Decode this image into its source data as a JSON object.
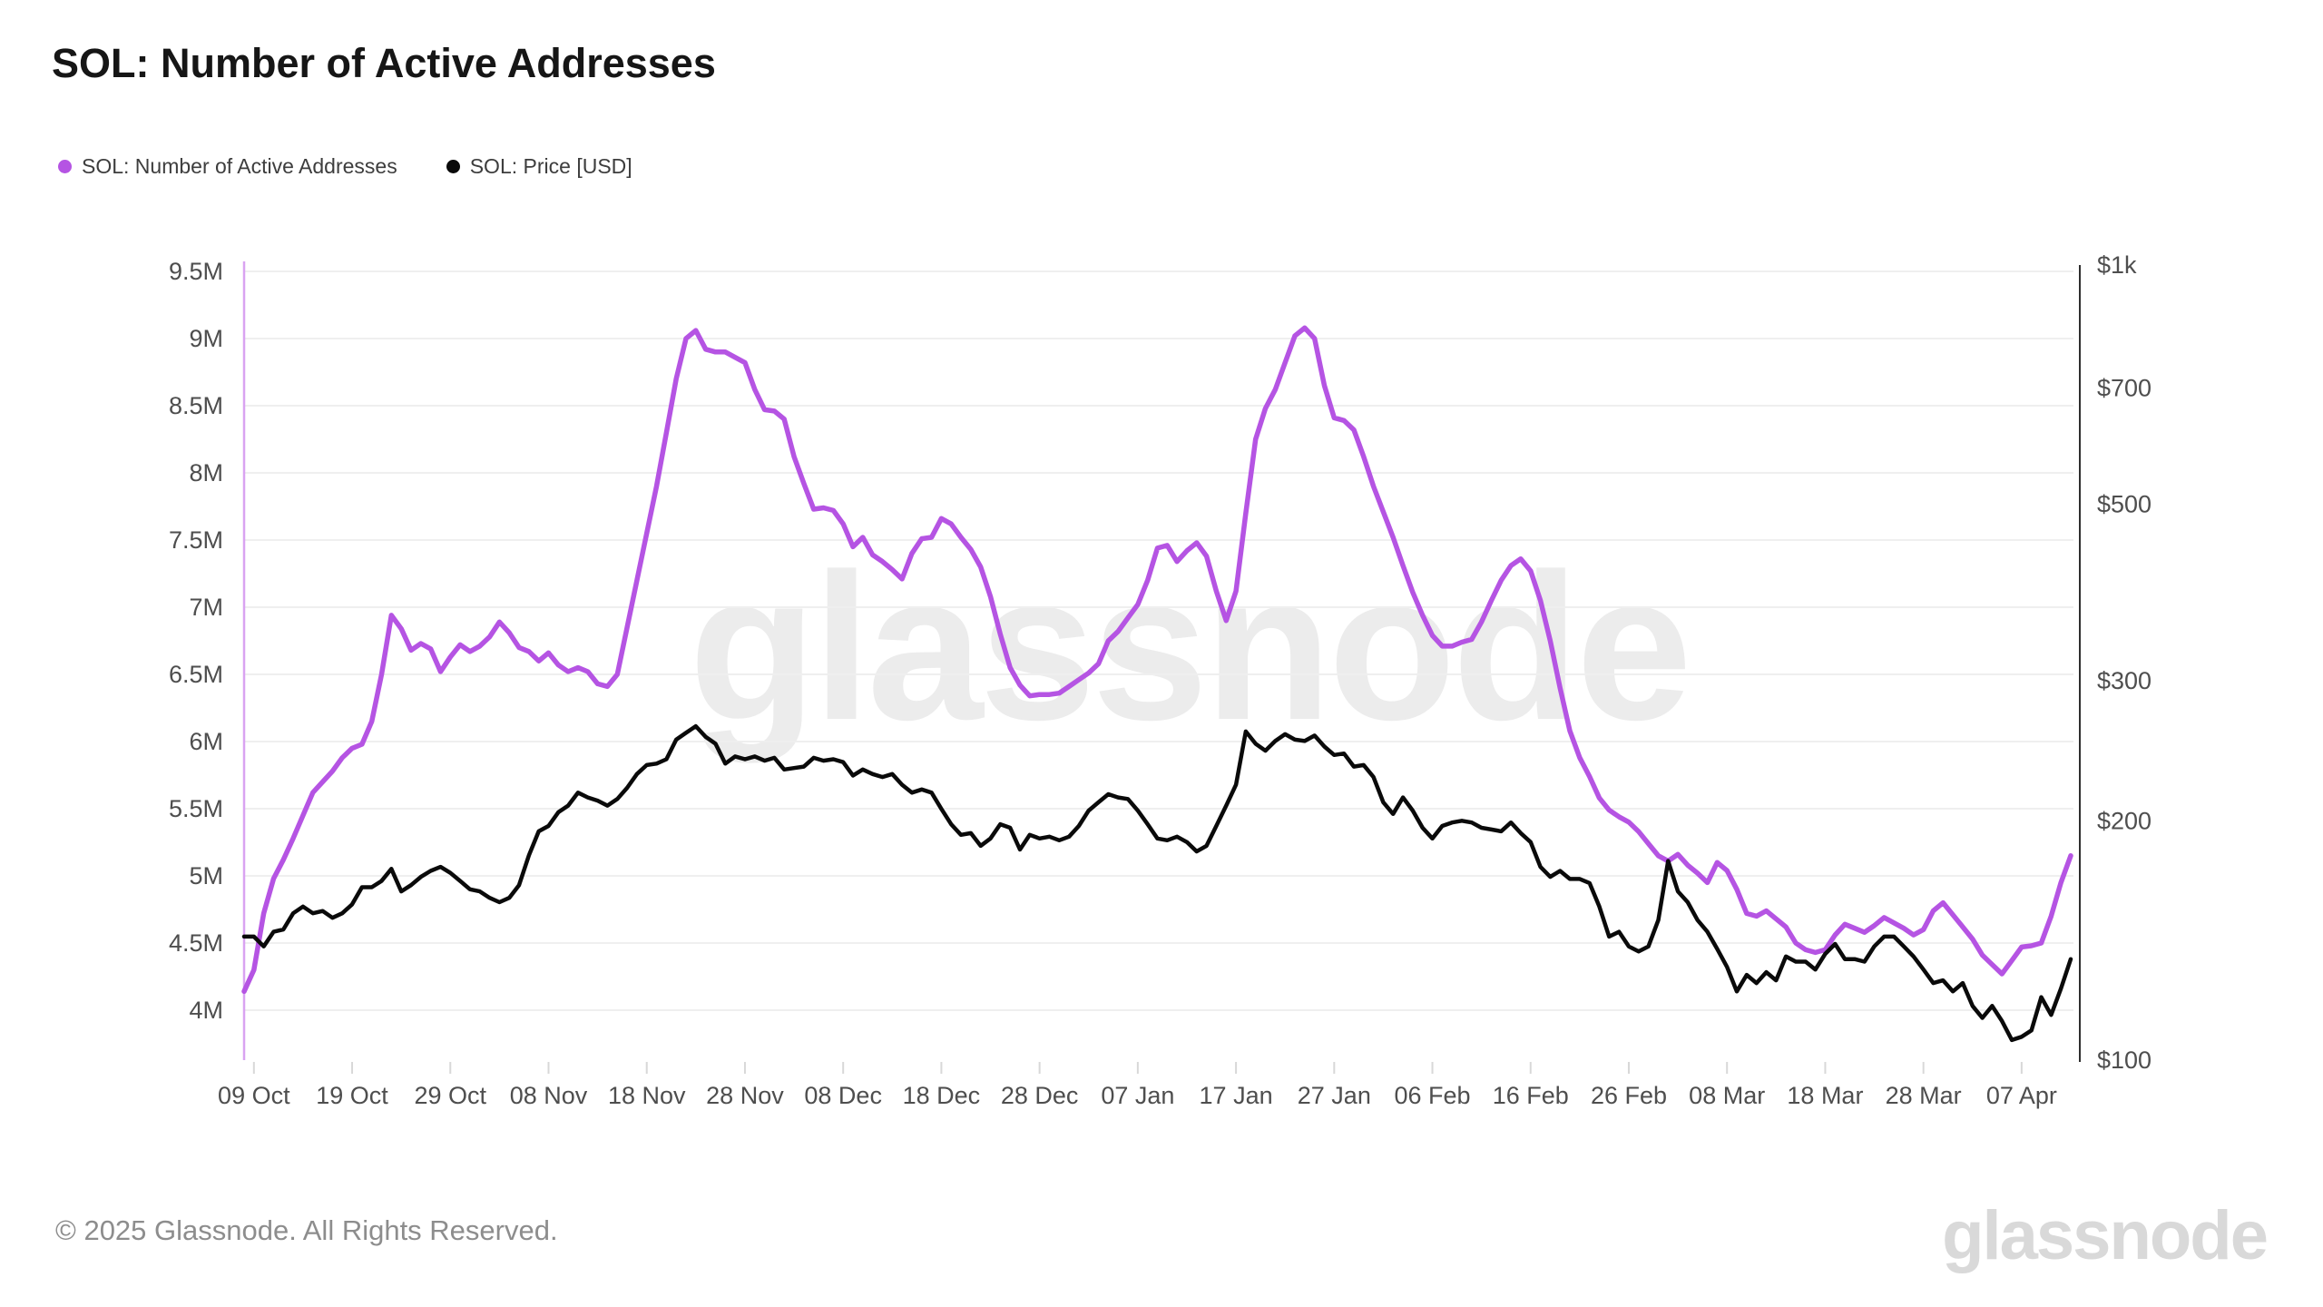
{
  "title": "SOL: Number of Active Addresses",
  "legend": [
    {
      "label": "SOL: Number of Active Addresses",
      "color": "#b554e3"
    },
    {
      "label": "SOL: Price [USD]",
      "color": "#0a0a0a"
    }
  ],
  "watermark": {
    "text": "glassnode",
    "color": "#ececec"
  },
  "footer": {
    "copyright": "© 2025 Glassnode. All Rights Reserved.",
    "brand": "glassnode"
  },
  "colors": {
    "left_axis_line": "#d9a3f1",
    "right_axis_line": "#2e2e2e",
    "gridline": "#efefef",
    "tick_mark": "#d8d8d8",
    "tick_text": "#4e4e4e"
  },
  "chart_data": {
    "type": "line",
    "interval": "daily",
    "start_date": "2024-10-08",
    "end_date": "2025-04-12",
    "grid": "horizontal-only",
    "legend_position": "top-left",
    "x_ticks": [
      {
        "day": 1,
        "label": "09 Oct"
      },
      {
        "day": 11,
        "label": "19 Oct"
      },
      {
        "day": 21,
        "label": "29 Oct"
      },
      {
        "day": 31,
        "label": "08 Nov"
      },
      {
        "day": 41,
        "label": "18 Nov"
      },
      {
        "day": 51,
        "label": "28 Nov"
      },
      {
        "day": 61,
        "label": "08 Dec"
      },
      {
        "day": 71,
        "label": "18 Dec"
      },
      {
        "day": 81,
        "label": "28 Dec"
      },
      {
        "day": 91,
        "label": "07 Jan"
      },
      {
        "day": 101,
        "label": "17 Jan"
      },
      {
        "day": 111,
        "label": "27 Jan"
      },
      {
        "day": 121,
        "label": "06 Feb"
      },
      {
        "day": 131,
        "label": "16 Feb"
      },
      {
        "day": 141,
        "label": "26 Feb"
      },
      {
        "day": 151,
        "label": "08 Mar"
      },
      {
        "day": 161,
        "label": "18 Mar"
      },
      {
        "day": 171,
        "label": "28 Mar"
      },
      {
        "day": 181,
        "label": "07 Apr"
      }
    ],
    "left_axis": {
      "unit": "M addresses",
      "min": 4,
      "max": 9.5,
      "scale": "linear",
      "ticks": [
        {
          "v": 9.5,
          "label": "9.5M"
        },
        {
          "v": 9,
          "label": "9M"
        },
        {
          "v": 8.5,
          "label": "8.5M"
        },
        {
          "v": 8,
          "label": "8M"
        },
        {
          "v": 7.5,
          "label": "7.5M"
        },
        {
          "v": 7,
          "label": "7M"
        },
        {
          "v": 6.5,
          "label": "6.5M"
        },
        {
          "v": 6,
          "label": "6M"
        },
        {
          "v": 5.5,
          "label": "5.5M"
        },
        {
          "v": 5,
          "label": "5M"
        },
        {
          "v": 4.5,
          "label": "4.5M"
        },
        {
          "v": 4,
          "label": "4M"
        }
      ]
    },
    "right_axis": {
      "unit": "USD",
      "min": 100,
      "max": 1000,
      "scale": "log",
      "ticks": [
        {
          "v": 1000,
          "label": "$1k"
        },
        {
          "v": 700,
          "label": "$700"
        },
        {
          "v": 500,
          "label": "$500"
        },
        {
          "v": 300,
          "label": "$300"
        },
        {
          "v": 200,
          "label": "$200"
        },
        {
          "v": 100,
          "label": "$100"
        }
      ]
    },
    "series": [
      {
        "name": "SOL: Number of Active Addresses",
        "axis": "left",
        "unit": "M",
        "color": "#b554e3",
        "values": [
          4.14,
          4.3,
          4.72,
          4.98,
          5.12,
          5.28,
          5.45,
          5.62,
          5.7,
          5.78,
          5.88,
          5.95,
          5.98,
          6.15,
          6.5,
          6.94,
          6.84,
          6.68,
          6.73,
          6.69,
          6.52,
          6.63,
          6.72,
          6.67,
          6.71,
          6.78,
          6.89,
          6.81,
          6.7,
          6.67,
          6.6,
          6.66,
          6.57,
          6.52,
          6.55,
          6.52,
          6.43,
          6.41,
          6.5,
          6.85,
          7.2,
          7.55,
          7.9,
          8.3,
          8.7,
          9.0,
          9.06,
          8.92,
          8.9,
          8.9,
          8.86,
          8.82,
          8.62,
          8.47,
          8.46,
          8.4,
          8.12,
          7.92,
          7.73,
          7.74,
          7.72,
          7.62,
          7.45,
          7.52,
          7.39,
          7.34,
          7.28,
          7.21,
          7.4,
          7.51,
          7.52,
          7.66,
          7.62,
          7.52,
          7.43,
          7.3,
          7.08,
          6.8,
          6.55,
          6.42,
          6.34,
          6.35,
          6.35,
          6.36,
          6.41,
          6.46,
          6.51,
          6.58,
          6.75,
          6.82,
          6.92,
          7.02,
          7.2,
          7.44,
          7.46,
          7.34,
          7.42,
          7.48,
          7.38,
          7.12,
          6.9,
          7.12,
          7.7,
          8.25,
          8.48,
          8.62,
          8.82,
          9.02,
          9.08,
          9.0,
          8.65,
          8.41,
          8.39,
          8.32,
          8.12,
          7.9,
          7.71,
          7.52,
          7.31,
          7.11,
          6.94,
          6.79,
          6.71,
          6.71,
          6.74,
          6.76,
          6.89,
          7.05,
          7.2,
          7.31,
          7.36,
          7.27,
          7.05,
          6.75,
          6.4,
          6.08,
          5.88,
          5.74,
          5.58,
          5.49,
          5.44,
          5.4,
          5.33,
          5.24,
          5.15,
          5.11,
          5.16,
          5.08,
          5.02,
          4.95,
          5.1,
          5.04,
          4.9,
          4.72,
          4.7,
          4.74,
          4.68,
          4.62,
          4.5,
          4.45,
          4.43,
          4.45,
          4.56,
          4.64,
          4.61,
          4.58,
          4.63,
          4.69,
          4.65,
          4.61,
          4.56,
          4.6,
          4.74,
          4.8,
          4.71,
          4.62,
          4.53,
          4.41,
          4.34,
          4.27,
          4.37,
          4.47,
          4.48,
          4.5,
          4.7,
          4.95,
          5.15
        ]
      },
      {
        "name": "SOL: Price [USD]",
        "axis": "right",
        "unit": "USD",
        "color": "#0a0a0a",
        "values": [
          143,
          143,
          139,
          145,
          146,
          153,
          156,
          153,
          154,
          151,
          153,
          157,
          165,
          165,
          168,
          174,
          163,
          166,
          170,
          173,
          175,
          172,
          168,
          164,
          163,
          160,
          158,
          160,
          166,
          181,
          194,
          197,
          205,
          209,
          217,
          214,
          212,
          209,
          213,
          220,
          229,
          235,
          236,
          239,
          253,
          258,
          263,
          255,
          250,
          236,
          241,
          239,
          241,
          238,
          240,
          232,
          233,
          234,
          240,
          238,
          239,
          237,
          228,
          232,
          229,
          227,
          229,
          222,
          217,
          219,
          217,
          207,
          198,
          192,
          193,
          186,
          190,
          198,
          196,
          184,
          192,
          190,
          191,
          189,
          191,
          197,
          206,
          211,
          216,
          214,
          213,
          206,
          198,
          190,
          189,
          191,
          188,
          183,
          186,
          197,
          209,
          222,
          259,
          250,
          245,
          252,
          257,
          253,
          252,
          256,
          248,
          242,
          243,
          234,
          235,
          227,
          211,
          204,
          214,
          206,
          196,
          190,
          197,
          199,
          200,
          199,
          196,
          195,
          194,
          199,
          193,
          188,
          175,
          170,
          173,
          169,
          169,
          167,
          156,
          143,
          145,
          139,
          137,
          139,
          150,
          178,
          163,
          158,
          150,
          145,
          138,
          131,
          122,
          128,
          125,
          129,
          126,
          135,
          133,
          133,
          130,
          136,
          140,
          134,
          134,
          133,
          139,
          143,
          143,
          139,
          135,
          130,
          125,
          126,
          122,
          125,
          117,
          113,
          117,
          112,
          106,
          107,
          109,
          120,
          114,
          123,
          134
        ]
      }
    ]
  }
}
